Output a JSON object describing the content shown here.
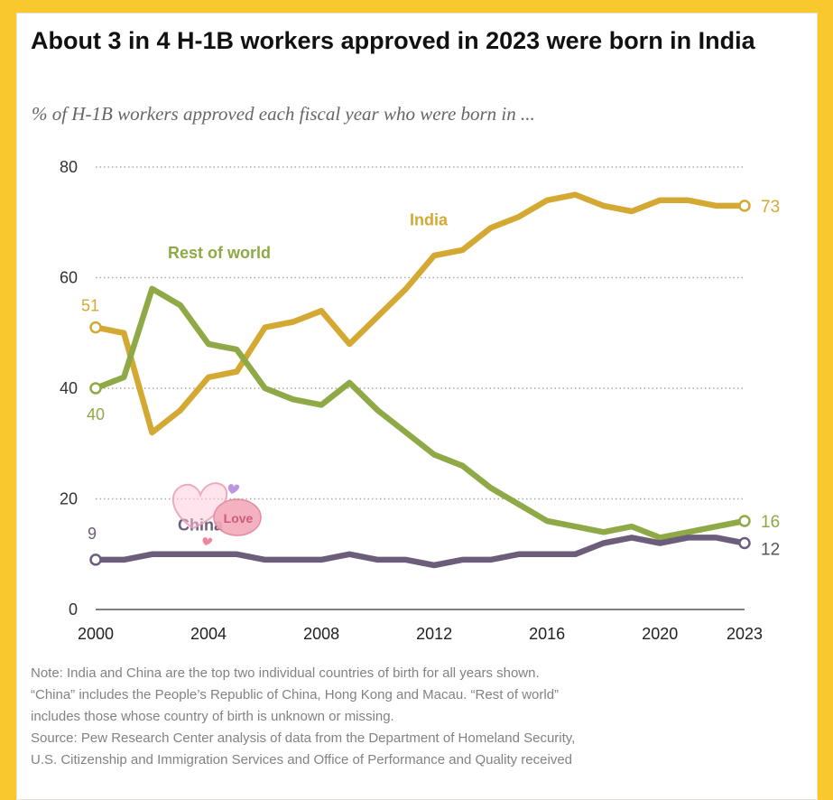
{
  "title": "About 3 in 4 H-1B workers approved in 2023 were born in India",
  "subtitle": "% of H-1B workers approved each fiscal year who were born in ...",
  "chart_data": {
    "type": "line",
    "x": [
      2000,
      2001,
      2002,
      2003,
      2004,
      2005,
      2006,
      2007,
      2008,
      2009,
      2010,
      2011,
      2012,
      2013,
      2014,
      2015,
      2016,
      2017,
      2018,
      2019,
      2020,
      2021,
      2022,
      2023
    ],
    "ylim": [
      0,
      80
    ],
    "yticks": [
      0,
      20,
      40,
      60,
      80
    ],
    "xticks": [
      2000,
      2004,
      2008,
      2012,
      2016,
      2020,
      2023
    ],
    "grid": true,
    "series": [
      {
        "name": "India",
        "color": "#d4a933",
        "values": [
          51,
          50,
          32,
          36,
          42,
          43,
          51,
          52,
          54,
          48,
          53,
          58,
          64,
          65,
          69,
          71,
          74,
          75,
          73,
          72,
          74,
          74,
          73,
          73
        ],
        "start_label": "51",
        "end_label": "73"
      },
      {
        "name": "Rest of world",
        "color": "#8fa946",
        "values": [
          40,
          42,
          58,
          55,
          48,
          47,
          40,
          38,
          37,
          41,
          36,
          32,
          28,
          26,
          22,
          19,
          16,
          15,
          14,
          15,
          13,
          14,
          15,
          16
        ],
        "start_label": "40",
        "end_label": "16"
      },
      {
        "name": "China",
        "color": "#6c5d7a",
        "values": [
          9,
          9,
          10,
          10,
          10,
          10,
          9,
          9,
          9,
          10,
          9,
          9,
          8,
          9,
          9,
          10,
          10,
          10,
          12,
          13,
          12,
          13,
          13,
          12
        ],
        "start_label": "9",
        "end_label": "12"
      }
    ]
  },
  "notes": [
    "Note: India and China are the top two individual countries of birth for all years shown.",
    "“China” includes the People’s Republic of China, Hong Kong and Macau. “Rest of world”",
    "includes those whose country of birth is unknown or missing.",
    "Source: Pew Research Center analysis of data from the Department of Homeland Security,",
    "U.S. Citizenship and Immigration Services and Office of Performance and Quality received"
  ],
  "sticker_text": "Love"
}
